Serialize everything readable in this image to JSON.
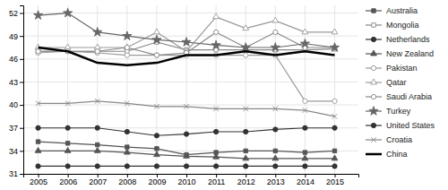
{
  "chart_data": {
    "type": "line",
    "x": [
      2005,
      2006,
      2007,
      2008,
      2009,
      2010,
      2011,
      2012,
      2013,
      2014,
      2015
    ],
    "series": [
      {
        "name": "Australia",
        "color": "#555555",
        "marker": "square",
        "values": [
          35.2,
          35.0,
          34.8,
          34.5,
          34.3,
          33.5,
          33.8,
          34.0,
          34.0,
          33.8,
          34.0
        ]
      },
      {
        "name": "Mongolia",
        "color": "#888888",
        "marker": "open-square",
        "values": [
          47.0,
          47.0,
          47.0,
          47.0,
          48.2,
          47.2,
          47.2,
          47.2,
          47.2,
          47.2,
          47.3
        ]
      },
      {
        "name": "Netherlands",
        "color": "#333333",
        "marker": "circle",
        "values": [
          37.0,
          37.0,
          37.0,
          36.5,
          36.0,
          36.2,
          36.5,
          36.5,
          36.8,
          37.0,
          37.0
        ]
      },
      {
        "name": "New Zealand",
        "color": "#555555",
        "marker": "triangle",
        "values": [
          34.0,
          34.0,
          34.0,
          33.8,
          33.5,
          33.3,
          33.2,
          33.0,
          33.0,
          33.0,
          33.0
        ]
      },
      {
        "name": "Pakistan",
        "color": "#999999",
        "marker": "open-circle",
        "values": [
          46.8,
          47.0,
          46.8,
          46.5,
          46.5,
          46.5,
          46.5,
          46.5,
          46.5,
          40.5,
          40.5
        ]
      },
      {
        "name": "Qatar",
        "color": "#999999",
        "marker": "open-triangle",
        "values": [
          47.5,
          47.5,
          47.5,
          47.5,
          49.5,
          47.0,
          51.5,
          50.0,
          51.0,
          49.5,
          49.5
        ]
      },
      {
        "name": "Saudi Arabia",
        "color": "#888888",
        "marker": "open-circle",
        "values": [
          47.0,
          47.0,
          47.0,
          47.5,
          46.5,
          46.8,
          49.5,
          47.5,
          49.5,
          47.5,
          47.5
        ]
      },
      {
        "name": "Turkey",
        "color": "#666666",
        "marker": "star",
        "values": [
          51.7,
          52.0,
          49.5,
          49.0,
          48.5,
          48.2,
          47.8,
          47.5,
          47.5,
          48.0,
          47.5
        ]
      },
      {
        "name": "United States",
        "color": "#333333",
        "marker": "circle",
        "values": [
          32.0,
          32.0,
          32.0,
          32.0,
          32.0,
          32.0,
          32.0,
          32.0,
          32.0,
          32.0,
          32.0
        ]
      },
      {
        "name": "Croatia",
        "color": "#888888",
        "marker": "x",
        "values": [
          40.2,
          40.2,
          40.5,
          40.2,
          39.8,
          39.8,
          39.5,
          39.5,
          39.5,
          39.3,
          38.5
        ]
      },
      {
        "name": "China",
        "color": "#000000",
        "marker": "none",
        "values": [
          47.5,
          47.0,
          45.5,
          45.2,
          45.5,
          46.5,
          46.5,
          47.0,
          46.5,
          47.0,
          46.5
        ]
      }
    ],
    "xlim": [
      2004.5,
      2015.8
    ],
    "xticks": [
      2005,
      2006,
      2007,
      2008,
      2009,
      2010,
      2011,
      2012,
      2013,
      2014,
      2015
    ],
    "ylim": [
      31,
      53
    ],
    "yticks": [
      31,
      34,
      37,
      40,
      43,
      46,
      49,
      52
    ],
    "grid": true,
    "legend": "right"
  }
}
